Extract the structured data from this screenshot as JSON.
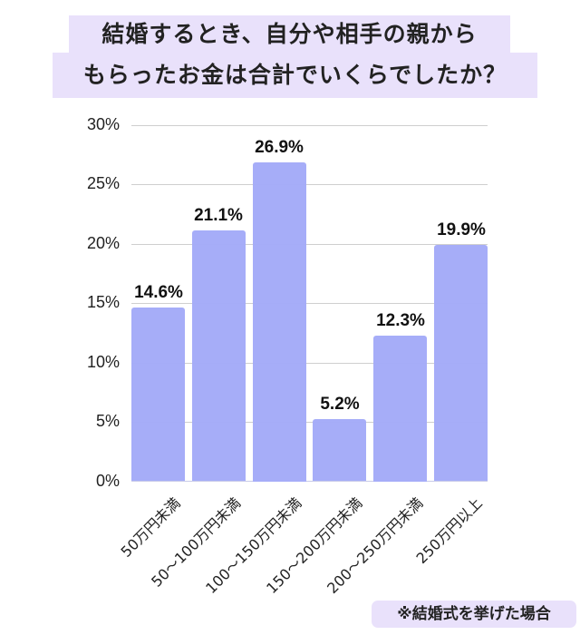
{
  "title": {
    "line1": "結婚するとき、自分や相手の親から",
    "line2": "もらったお金は合計でいくらでしたか？"
  },
  "note": "※結婚式を挙げた場合",
  "colors": {
    "bar": "#a3aaf8",
    "title_bg": "#e9e1fb",
    "grid": "#cfcfcf"
  },
  "y_axis": {
    "ticks": [
      "30%",
      "25%",
      "20%",
      "15%",
      "10%",
      "5%",
      "0%"
    ]
  },
  "bars": [
    {
      "category": "50万円未満",
      "value": 14.6,
      "label": "14.6%"
    },
    {
      "category": "50~100万円未満",
      "value": 21.1,
      "label": "21.1%"
    },
    {
      "category": "100~150万円未満",
      "value": 26.9,
      "label": "26.9%"
    },
    {
      "category": "150~200万円未満",
      "value": 5.2,
      "label": "5.2%"
    },
    {
      "category": "200~250万円未満",
      "value": 12.3,
      "label": "12.3%"
    },
    {
      "category": "250万円以上",
      "value": 19.9,
      "label": "19.9%"
    }
  ],
  "chart_data": {
    "type": "bar",
    "title": "結婚するとき、自分や相手の親からもらったお金は合計でいくらでしたか？",
    "categories": [
      "50万円未満",
      "50~100万円未満",
      "100~150万円未満",
      "150~200万円未満",
      "200~250万円未満",
      "250万円以上"
    ],
    "values": [
      14.6,
      21.1,
      26.9,
      5.2,
      12.3,
      19.9
    ],
    "data_labels": [
      "14.6%",
      "21.1%",
      "26.9%",
      "5.2%",
      "12.3%",
      "19.9%"
    ],
    "xlabel": "",
    "ylabel": "",
    "ylim": [
      0,
      30
    ],
    "yticks": [
      0,
      5,
      10,
      15,
      20,
      25,
      30
    ],
    "ytick_format": "%",
    "grid": true,
    "legend": null,
    "annotation": "※結婚式を挙げた場合"
  }
}
